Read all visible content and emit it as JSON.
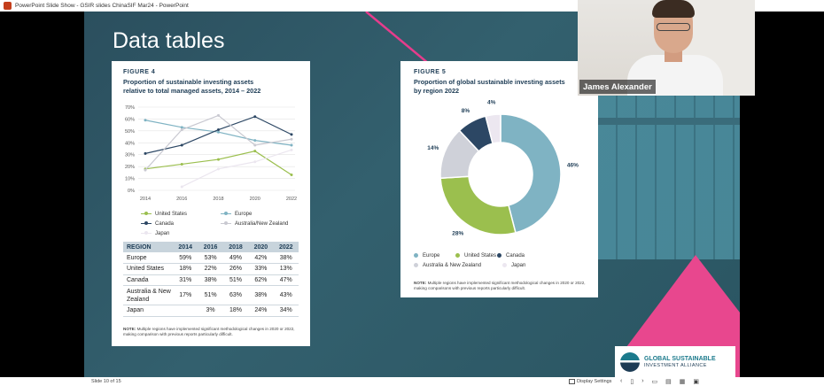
{
  "window": {
    "title": "PowerPoint Slide Show  -  GSIR slides ChinaSIF Mar24  -  PowerPoint"
  },
  "slide": {
    "title": "Data tables"
  },
  "figure4": {
    "label": "FIGURE 4",
    "title_line1": "Proportion of sustainable investing assets",
    "title_line2": "relative to total managed assets, 2014 – 2022",
    "legend": [
      "United States",
      "Europe",
      "Canada",
      "Australia/New Zealand",
      "Japan"
    ],
    "table": {
      "headers": [
        "REGION",
        "2014",
        "2016",
        "2018",
        "2020",
        "2022"
      ],
      "rows": [
        [
          "Europe",
          "59%",
          "53%",
          "49%",
          "42%",
          "38%"
        ],
        [
          "United States",
          "18%",
          "22%",
          "26%",
          "33%",
          "13%"
        ],
        [
          "Canada",
          "31%",
          "38%",
          "51%",
          "62%",
          "47%"
        ],
        [
          "Australia & New Zealand",
          "17%",
          "51%",
          "63%",
          "38%",
          "43%"
        ],
        [
          "Japan",
          "",
          "3%",
          "18%",
          "24%",
          "34%"
        ]
      ]
    },
    "note_bold": "NOTE:",
    "note": " Multiple regions have implemented significant methodological changes in 2020 or 2022, making comparison with previous reports particularly difficult.",
    "colors": {
      "United States": "#9bbf4e",
      "Europe": "#7fb3c3",
      "Canada": "#2c4764",
      "Australia/New Zealand": "#c9c9d1",
      "Japan": "#ebe6ef"
    }
  },
  "figure5": {
    "label": "FIGURE 5",
    "title_line1": "Proportion of global sustainable investing assets",
    "title_line2": "by region 2022",
    "legend": [
      "Europe",
      "United States",
      "Canada",
      "Australia & New Zealand",
      "Japan"
    ],
    "note_bold": "NOTE:",
    "note": " Multiple regions have implemented significant methodological changes in 2020 or 2022, making comparisons with previous reports particularly difficult.",
    "colors": {
      "Europe": "#7fb3c3",
      "United States": "#9bbf4e",
      "Canada": "#2c4764",
      "Australia & New Zealand": "#cfd1d9",
      "Japan": "#ece7f0"
    }
  },
  "chart_data": [
    {
      "type": "line",
      "title": "Proportion of sustainable investing assets relative to total managed assets, 2014 – 2022",
      "x": [
        2014,
        2016,
        2018,
        2020,
        2022
      ],
      "ylim": [
        0,
        70
      ],
      "yticks": [
        "0%",
        "10%",
        "20%",
        "30%",
        "40%",
        "50%",
        "60%",
        "70%"
      ],
      "grid": true,
      "legend_position": "bottom",
      "series": [
        {
          "name": "Europe",
          "values": [
            59,
            53,
            49,
            42,
            38
          ]
        },
        {
          "name": "United States",
          "values": [
            18,
            22,
            26,
            33,
            13
          ]
        },
        {
          "name": "Canada",
          "values": [
            31,
            38,
            51,
            62,
            47
          ]
        },
        {
          "name": "Australia/New Zealand",
          "values": [
            17,
            51,
            63,
            38,
            43
          ]
        },
        {
          "name": "Japan",
          "values": [
            null,
            3,
            18,
            24,
            34
          ]
        }
      ]
    },
    {
      "type": "pie",
      "title": "Proportion of global sustainable investing assets by region 2022",
      "categories": [
        "Europe",
        "United States",
        "Canada",
        "Australia & New Zealand",
        "Japan"
      ],
      "values": [
        46,
        28,
        8,
        14,
        4
      ],
      "labels": [
        "46%",
        "28%",
        "8%",
        "14%",
        "4%"
      ],
      "legend_position": "bottom"
    }
  ],
  "webcam": {
    "participant_name": "James Alexander"
  },
  "logo": {
    "line1": "GLOBAL SUSTAINABLE",
    "line2": "INVESTMENT ALLIANCE"
  },
  "statusbar": {
    "slide_indicator": "Slide 10 of 15",
    "display_settings": "Display Settings",
    "icons": [
      "prev-icon",
      "next-icon",
      "normal-view-icon",
      "slide-sorter-icon",
      "reading-view-icon",
      "slideshow-icon"
    ]
  }
}
